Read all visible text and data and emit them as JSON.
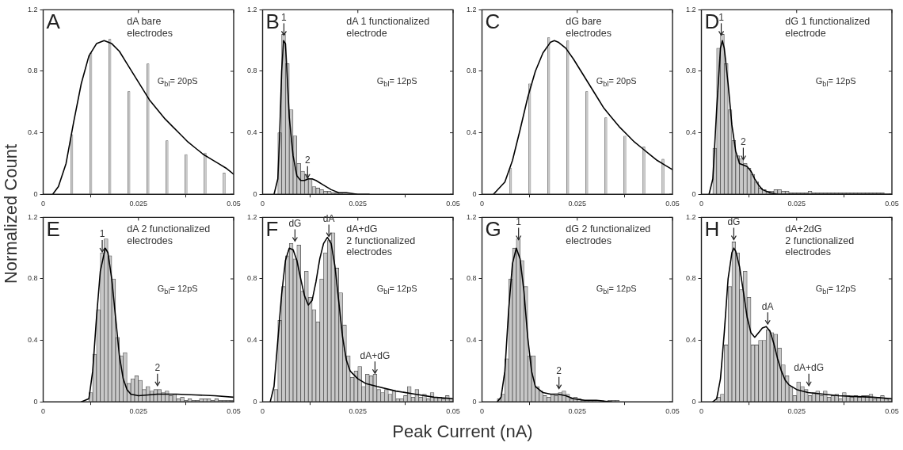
{
  "chart_data": [
    {
      "type": "bar",
      "title": "A",
      "subtitle": "dA bare\nelectrodes",
      "ylabel": "Normalized Count",
      "x": [
        0.0075,
        0.0125,
        0.0175,
        0.0225,
        0.0275,
        0.0325,
        0.0375,
        0.0425,
        0.0475
      ],
      "values": [
        0.39,
        0.92,
        1.01,
        0.67,
        0.85,
        0.35,
        0.26,
        0.27,
        0.14
      ],
      "color": "#c8c8c8",
      "series": [
        {
          "type": "line",
          "color": "#000000",
          "x": [
            0.0025,
            0.004,
            0.006,
            0.008,
            0.01,
            0.012,
            0.014,
            0.016,
            0.018,
            0.02,
            0.022,
            0.024,
            0.026,
            0.028,
            0.03,
            0.032,
            0.034,
            0.036,
            0.038,
            0.04,
            0.042,
            0.044,
            0.046,
            0.048,
            0.05
          ],
          "values": [
            0,
            0.05,
            0.2,
            0.47,
            0.72,
            0.9,
            0.98,
            1,
            0.98,
            0.93,
            0.85,
            0.77,
            0.69,
            0.61,
            0.55,
            0.49,
            0.44,
            0.39,
            0.34,
            0.3,
            0.26,
            0.23,
            0.2,
            0.17,
            0.13
          ]
        }
      ],
      "annotations": [
        "G$_{bl}$= 20pS"
      ],
      "xlim": [
        0,
        0.05
      ],
      "ylim": [
        0,
        1.2
      ],
      "xticks": [
        0,
        0.025,
        0.05
      ],
      "yticks": [
        0,
        0.4,
        0.8,
        1.2
      ]
    },
    {
      "type": "histogram",
      "title": "B",
      "subtitle": "dA 1 functionalized\nelectrode",
      "bins": [
        0.004,
        0.005,
        0.006,
        0.007,
        0.008,
        0.009,
        0.01,
        0.011,
        0.012,
        0.013,
        0.014,
        0.015,
        0.016,
        0.017,
        0.018,
        0.019,
        0.02,
        0.021
      ],
      "values": [
        0.4,
        1.04,
        0.85,
        0.55,
        0.38,
        0.2,
        0.15,
        0.13,
        0.1,
        0.05,
        0.04,
        0.03,
        0.02,
        0.02,
        0.01,
        0.01,
        0.01
      ],
      "color": "#c8c8c8",
      "series": [
        {
          "type": "line",
          "color": "#000000",
          "x": [
            0.003,
            0.004,
            0.0045,
            0.005,
            0.0055,
            0.006,
            0.0065,
            0.007,
            0.008,
            0.009,
            0.01,
            0.011,
            0.012,
            0.013,
            0.014,
            0.016,
            0.018,
            0.02,
            0.022,
            0.025,
            0.028
          ],
          "values": [
            0,
            0.1,
            0.4,
            0.8,
            1,
            0.98,
            0.75,
            0.5,
            0.25,
            0.12,
            0.09,
            0.09,
            0.1,
            0.1,
            0.09,
            0.06,
            0.03,
            0.01,
            0.01,
            0,
            0
          ]
        }
      ],
      "annotations": [
        "G$_{bl}$= 12pS",
        {
          "text": "1",
          "x": 0.0056,
          "y": 1.03
        },
        {
          "text": "2",
          "x": 0.0118,
          "y": 0.1
        }
      ],
      "xlim": [
        0,
        0.05
      ],
      "ylim": [
        0,
        1.2
      ],
      "xticks": [
        0,
        0.025,
        0.05
      ],
      "yticks": [
        0,
        0.4,
        0.8,
        1.2
      ]
    },
    {
      "type": "bar",
      "title": "C",
      "subtitle": "dG bare\nelectrodes",
      "x": [
        0.0075,
        0.0125,
        0.0175,
        0.0225,
        0.0275,
        0.0325,
        0.0375,
        0.0425,
        0.0475
      ],
      "values": [
        0.17,
        0.72,
        1.02,
        1,
        0.67,
        0.5,
        0.38,
        0.31,
        0.23
      ],
      "color": "#c8c8c8",
      "series": [
        {
          "type": "line",
          "color": "#000000",
          "x": [
            0.003,
            0.006,
            0.008,
            0.01,
            0.012,
            0.014,
            0.016,
            0.018,
            0.019,
            0.02,
            0.022,
            0.024,
            0.026,
            0.028,
            0.03,
            0.032,
            0.034,
            0.036,
            0.038,
            0.04,
            0.042,
            0.044,
            0.046,
            0.048,
            0.05
          ],
          "values": [
            0,
            0.08,
            0.22,
            0.42,
            0.63,
            0.8,
            0.92,
            0.99,
            1,
            0.99,
            0.95,
            0.88,
            0.8,
            0.72,
            0.64,
            0.56,
            0.5,
            0.44,
            0.39,
            0.34,
            0.3,
            0.26,
            0.22,
            0.19,
            0.16
          ]
        }
      ],
      "annotations": [
        "G$_{bl}$= 20pS"
      ],
      "xlim": [
        0,
        0.05
      ],
      "ylim": [
        0,
        1.2
      ],
      "xticks": [
        0,
        0.025,
        0.05
      ],
      "yticks": [
        0,
        0.4,
        0.8,
        1.2
      ]
    },
    {
      "type": "histogram",
      "title": "D",
      "subtitle": "dG 1 functionalized\nelectrode",
      "bins": [
        0.003,
        0.004,
        0.005,
        0.006,
        0.007,
        0.008,
        0.009,
        0.01,
        0.011,
        0.012,
        0.013,
        0.014,
        0.015,
        0.016,
        0.017,
        0.018,
        0.019,
        0.02,
        0.021,
        0.022,
        0.023,
        0.024,
        0.025,
        0.026,
        0.027,
        0.028,
        0.029,
        0.03,
        0.031,
        0.032,
        0.033,
        0.034,
        0.035,
        0.036,
        0.037,
        0.038,
        0.039,
        0.04,
        0.041,
        0.042,
        0.043,
        0.044,
        0.045,
        0.046,
        0.047,
        0.048
      ],
      "values": [
        0.3,
        0.95,
        1.04,
        0.85,
        0.55,
        0.35,
        0.25,
        0.23,
        0.2,
        0.17,
        0.13,
        0.08,
        0.04,
        0.03,
        0.02,
        0.02,
        0.03,
        0.03,
        0.02,
        0.02,
        0.01,
        0.01,
        0.01,
        0.01,
        0.01,
        0.02,
        0.01,
        0.01,
        0.01,
        0.01,
        0.01,
        0.01,
        0.01,
        0.01,
        0.01,
        0.01,
        0.01,
        0.01,
        0.01,
        0.01,
        0.01,
        0.01,
        0.01,
        0.01,
        0.01
      ],
      "color": "#c8c8c8",
      "series": [
        {
          "type": "line",
          "color": "#000000",
          "x": [
            0.002,
            0.003,
            0.004,
            0.005,
            0.0055,
            0.006,
            0.007,
            0.008,
            0.009,
            0.01,
            0.011,
            0.012,
            0.013,
            0.014,
            0.015,
            0.016,
            0.018,
            0.02,
            0.05
          ],
          "values": [
            0,
            0.1,
            0.55,
            0.95,
            1,
            0.95,
            0.72,
            0.45,
            0.28,
            0.2,
            0.19,
            0.18,
            0.15,
            0.1,
            0.06,
            0.03,
            0.01,
            0,
            0
          ]
        }
      ],
      "annotations": [
        "G$_{bl}$= 12pS",
        {
          "text": "1",
          "x": 0.0052,
          "y": 1.03
        },
        {
          "text": "2",
          "x": 0.011,
          "y": 0.22
        }
      ],
      "xlim": [
        0,
        0.05
      ],
      "ylim": [
        0,
        1.2
      ],
      "xticks": [
        0,
        0.025,
        0.05
      ],
      "yticks": [
        0,
        0.4,
        0.8,
        1.2
      ]
    },
    {
      "type": "histogram",
      "title": "E",
      "subtitle": "dA 2 functionalized\nelectrodes",
      "bins": [
        0.012,
        0.013,
        0.014,
        0.015,
        0.016,
        0.017,
        0.018,
        0.019,
        0.02,
        0.021,
        0.022,
        0.023,
        0.024,
        0.025,
        0.026,
        0.027,
        0.028,
        0.029,
        0.03,
        0.031,
        0.032,
        0.033,
        0.034,
        0.035,
        0.036,
        0.037,
        0.038,
        0.039,
        0.04,
        0.041,
        0.042,
        0.043,
        0.044,
        0.045,
        0.046,
        0.047,
        0.048,
        0.049,
        0.05
      ],
      "values": [
        0.06,
        0.31,
        0.6,
        0.97,
        1.06,
        0.95,
        0.8,
        0.42,
        0.3,
        0.32,
        0.12,
        0.15,
        0.17,
        0.14,
        0.08,
        0.1,
        0.07,
        0.08,
        0.08,
        0.06,
        0.07,
        0.04,
        0.05,
        0.02,
        0.03,
        0.01,
        0.02,
        0.01,
        0.01,
        0.02,
        0.02,
        0.02,
        0.01,
        0.02,
        0.01,
        0.01,
        0.01,
        0.01
      ],
      "color": "#c8c8c8",
      "series": [
        {
          "type": "line",
          "color": "#000000",
          "x": [
            0.01,
            0.012,
            0.013,
            0.014,
            0.015,
            0.0163,
            0.017,
            0.018,
            0.019,
            0.02,
            0.021,
            0.022,
            0.023,
            0.025,
            0.03,
            0.035,
            0.04,
            0.045,
            0.05
          ],
          "values": [
            0,
            0.02,
            0.2,
            0.55,
            0.85,
            1,
            0.97,
            0.8,
            0.55,
            0.3,
            0.15,
            0.08,
            0.05,
            0.04,
            0.05,
            0.05,
            0.045,
            0.04,
            0.03
          ]
        }
      ],
      "annotations": [
        "G$_{bl}$= 12pS",
        {
          "text": "1",
          "x": 0.0155,
          "y": 0.97
        },
        {
          "text": "2",
          "x": 0.03,
          "y": 0.1
        }
      ],
      "xlim": [
        0,
        0.05
      ],
      "ylim": [
        0,
        1.2
      ],
      "xticks": [
        0,
        0.025,
        0.05
      ],
      "yticks": [
        0,
        0.4,
        0.8,
        1.2
      ]
    },
    {
      "type": "histogram",
      "title": "F",
      "subtitle": "dA+dG\n2 functionalized\nelectrodes",
      "xlabel": "Peak Current (nA)",
      "bins": [
        0.003,
        0.004,
        0.005,
        0.006,
        0.007,
        0.008,
        0.009,
        0.01,
        0.011,
        0.012,
        0.013,
        0.014,
        0.015,
        0.016,
        0.017,
        0.018,
        0.019,
        0.02,
        0.021,
        0.022,
        0.023,
        0.024,
        0.025,
        0.026,
        0.027,
        0.028,
        0.029,
        0.03,
        0.031,
        0.032,
        0.033,
        0.034,
        0.035,
        0.036,
        0.037,
        0.038,
        0.039,
        0.04,
        0.041,
        0.042,
        0.043,
        0.044,
        0.045,
        0.046,
        0.047,
        0.048,
        0.049,
        0.05
      ],
      "values": [
        0.08,
        0.53,
        0.75,
        0.95,
        1.03,
        0.93,
        1.02,
        0.72,
        0.85,
        0.68,
        0.6,
        0.52,
        0.8,
        0.97,
        1.05,
        1.1,
        0.87,
        0.71,
        0.5,
        0.3,
        0.16,
        0.2,
        0.23,
        0.1,
        0.18,
        0.17,
        0.18,
        0.08,
        0.06,
        0.08,
        0.05,
        0.07,
        0.02,
        0.02,
        0.04,
        0.1,
        0.03,
        0.08,
        0.03,
        0.05,
        0.02,
        0.06,
        0.03,
        0.03,
        0.02,
        0.04,
        0.02
      ],
      "color": "#c8c8c8",
      "series": [
        {
          "type": "line",
          "color": "#000000",
          "x": [
            0.002,
            0.003,
            0.004,
            0.005,
            0.006,
            0.007,
            0.008,
            0.009,
            0.01,
            0.011,
            0.012,
            0.013,
            0.014,
            0.015,
            0.016,
            0.017,
            0.018,
            0.019,
            0.02,
            0.021,
            0.022,
            0.023,
            0.025,
            0.027,
            0.03,
            0.035,
            0.04,
            0.045,
            0.05
          ],
          "values": [
            0,
            0.1,
            0.4,
            0.7,
            0.92,
            1,
            0.99,
            0.92,
            0.8,
            0.69,
            0.63,
            0.66,
            0.78,
            0.93,
            1.03,
            1.07,
            1.03,
            0.88,
            0.65,
            0.42,
            0.27,
            0.2,
            0.15,
            0.12,
            0.1,
            0.07,
            0.05,
            0.03,
            0.02
          ]
        }
      ],
      "annotations": [
        "G$_{bl}$= 12pS",
        {
          "text": "dG",
          "x": 0.0085,
          "y": 1.04
        },
        {
          "text": "dA",
          "x": 0.0174,
          "y": 1.07
        },
        {
          "text": "dA+dG",
          "x": 0.0295,
          "y": 0.18
        }
      ],
      "xlim": [
        0,
        0.05
      ],
      "ylim": [
        0,
        1.2
      ],
      "xticks": [
        0,
        0.025,
        0.05
      ],
      "yticks": [
        0,
        0.4,
        0.8,
        1.2
      ]
    },
    {
      "type": "histogram",
      "title": "G",
      "subtitle": "dG 2 functionalized\nelectrodes",
      "bins": [
        0.004,
        0.005,
        0.006,
        0.007,
        0.008,
        0.009,
        0.01,
        0.011,
        0.012,
        0.013,
        0.014,
        0.015,
        0.016,
        0.017,
        0.018,
        0.019,
        0.02,
        0.021,
        0.022,
        0.023,
        0.024,
        0.025,
        0.026,
        0.027,
        0.028,
        0.029,
        0.03,
        0.031,
        0.032,
        0.033,
        0.034,
        0.035,
        0.036
      ],
      "values": [
        0.02,
        0.05,
        0.28,
        0.8,
        1,
        1.06,
        0.92,
        0.75,
        0.3,
        0.3,
        0.1,
        0.07,
        0.04,
        0.03,
        0.05,
        0.04,
        0.06,
        0.07,
        0.05,
        0.02,
        0.03,
        0.02,
        0.01,
        0.01,
        0.01,
        0.01,
        0,
        0,
        0,
        0.01,
        0.01,
        0.01
      ],
      "color": "#c8c8c8",
      "series": [
        {
          "type": "line",
          "color": "#000000",
          "x": [
            0.004,
            0.005,
            0.006,
            0.007,
            0.008,
            0.009,
            0.01,
            0.011,
            0.012,
            0.013,
            0.014,
            0.016,
            0.018,
            0.02,
            0.022,
            0.024,
            0.027,
            0.03,
            0.034
          ],
          "values": [
            0,
            0.03,
            0.2,
            0.6,
            0.9,
            1,
            0.93,
            0.72,
            0.42,
            0.2,
            0.1,
            0.06,
            0.05,
            0.05,
            0.04,
            0.02,
            0.01,
            0.01,
            0
          ]
        }
      ],
      "annotations": [
        "G$_{bl}$= 12pS",
        {
          "text": "1",
          "x": 0.0096,
          "y": 1.05
        },
        {
          "text": "2",
          "x": 0.0202,
          "y": 0.08
        }
      ],
      "xlim": [
        0,
        0.05
      ],
      "ylim": [
        0,
        1.2
      ],
      "xticks": [
        0,
        0.025,
        0.05
      ],
      "yticks": [
        0,
        0.4,
        0.8,
        1.2
      ]
    },
    {
      "type": "histogram",
      "title": "H",
      "subtitle": "dA+2dG\n2 functionalized\nelectrodes",
      "bins": [
        0.004,
        0.005,
        0.006,
        0.007,
        0.008,
        0.009,
        0.01,
        0.011,
        0.012,
        0.013,
        0.014,
        0.015,
        0.016,
        0.017,
        0.018,
        0.019,
        0.02,
        0.021,
        0.022,
        0.023,
        0.024,
        0.025,
        0.026,
        0.027,
        0.028,
        0.029,
        0.03,
        0.031,
        0.032,
        0.033,
        0.034,
        0.035,
        0.036,
        0.037,
        0.038,
        0.039,
        0.04,
        0.041,
        0.042,
        0.043,
        0.044,
        0.045,
        0.046,
        0.047,
        0.048,
        0.049,
        0.05
      ],
      "values": [
        0.03,
        0.05,
        0.37,
        0.75,
        1.04,
        0.97,
        0.73,
        0.85,
        0.68,
        0.37,
        0.37,
        0.4,
        0.4,
        0.47,
        0.45,
        0.44,
        0.35,
        0.24,
        0.17,
        0.1,
        0.04,
        0.13,
        0.1,
        0.08,
        0.04,
        0.06,
        0.07,
        0.04,
        0.07,
        0.03,
        0.04,
        0.05,
        0.02,
        0.06,
        0.04,
        0.03,
        0.04,
        0.03,
        0.04,
        0.04,
        0.05,
        0.02,
        0.03,
        0.04,
        0.02,
        0.02
      ],
      "color": "#c8c8c8",
      "series": [
        {
          "type": "line",
          "color": "#000000",
          "x": [
            0.003,
            0.004,
            0.005,
            0.006,
            0.007,
            0.008,
            0.0085,
            0.009,
            0.01,
            0.011,
            0.012,
            0.013,
            0.014,
            0.015,
            0.016,
            0.017,
            0.018,
            0.019,
            0.02,
            0.021,
            0.022,
            0.023,
            0.025,
            0.028,
            0.032,
            0.036,
            0.04,
            0.045,
            0.05
          ],
          "values": [
            0,
            0.02,
            0.15,
            0.45,
            0.8,
            0.97,
            1,
            0.98,
            0.88,
            0.72,
            0.55,
            0.45,
            0.42,
            0.45,
            0.48,
            0.49,
            0.46,
            0.38,
            0.28,
            0.2,
            0.14,
            0.11,
            0.08,
            0.06,
            0.05,
            0.04,
            0.035,
            0.03,
            0.02
          ]
        }
      ],
      "annotations": [
        "G$_{bl}$= 12pS",
        {
          "text": "dG",
          "x": 0.0085,
          "y": 1.05
        },
        {
          "text": "dA",
          "x": 0.0174,
          "y": 0.5
        },
        {
          "text": "dA+dG",
          "x": 0.0282,
          "y": 0.1
        }
      ],
      "xlim": [
        0,
        0.05
      ],
      "ylim": [
        0,
        1.2
      ],
      "xticks": [
        0,
        0.025,
        0.05
      ],
      "yticks": [
        0,
        0.4,
        0.8,
        1.2
      ]
    }
  ]
}
